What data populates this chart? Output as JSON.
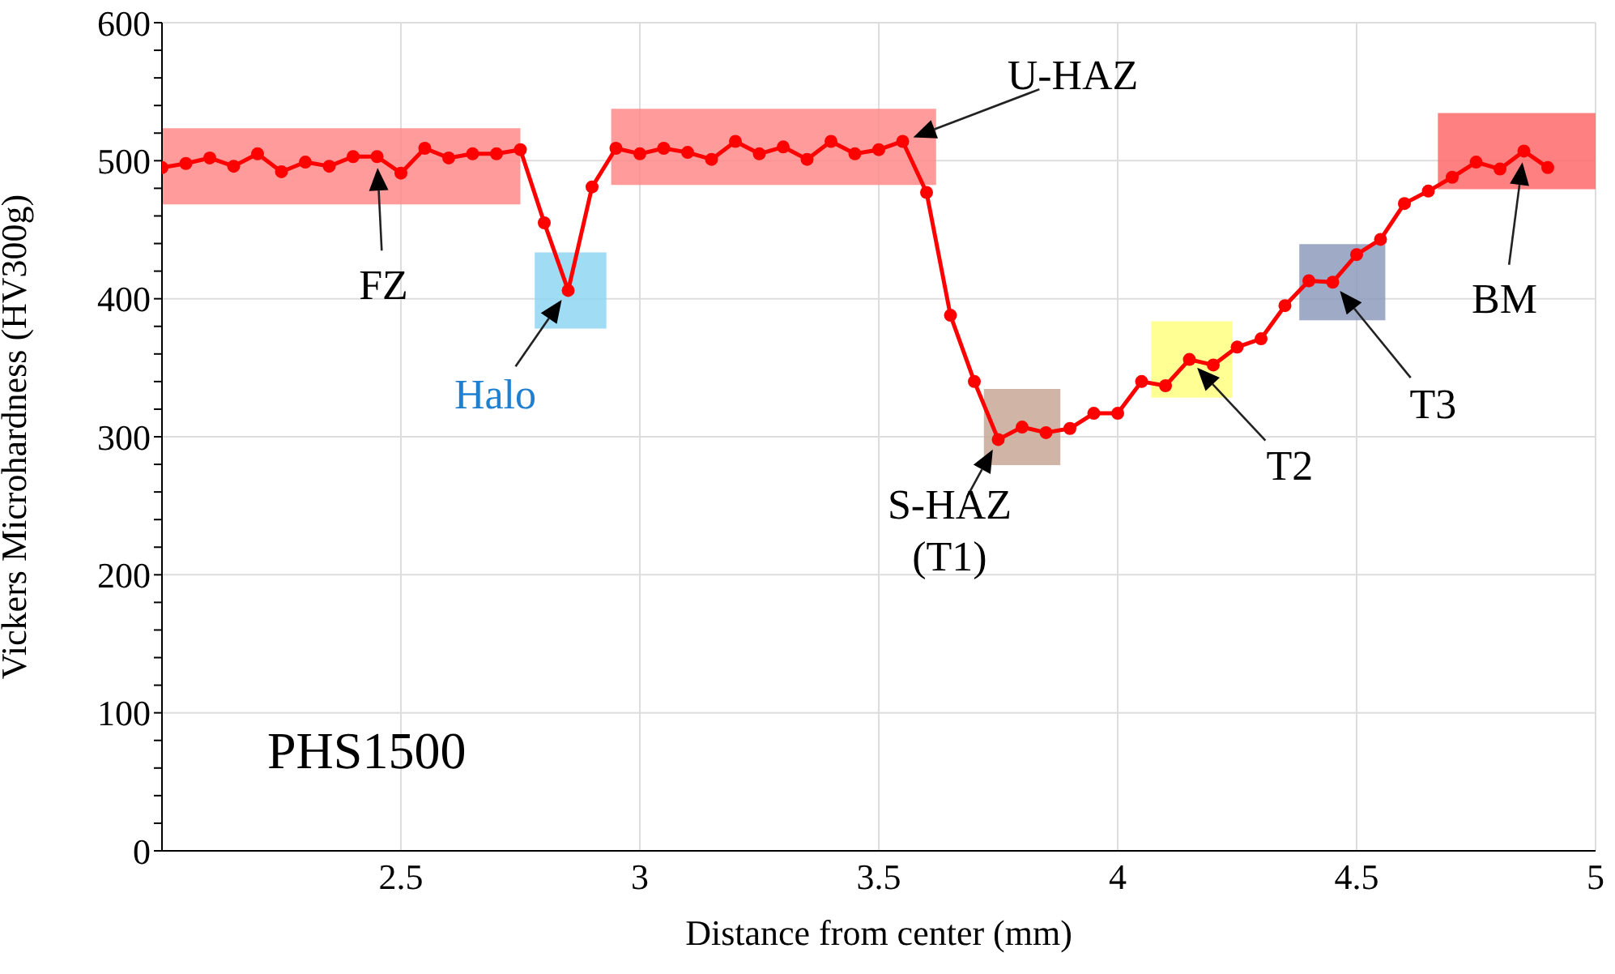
{
  "chart_data": {
    "type": "line",
    "xlabel": "Distance from center (mm)",
    "ylabel": "Vickers Microhardness (HV300g)",
    "x": [
      2.0,
      2.05,
      2.1,
      2.15,
      2.2,
      2.25,
      2.3,
      2.35,
      2.4,
      2.45,
      2.5,
      2.55,
      2.6,
      2.65,
      2.7,
      2.75,
      2.8,
      2.85,
      2.9,
      2.95,
      3.0,
      3.05,
      3.1,
      3.15,
      3.2,
      3.25,
      3.3,
      3.35,
      3.4,
      3.45,
      3.5,
      3.55,
      3.6,
      3.65,
      3.7,
      3.75,
      3.8,
      3.85,
      3.9,
      3.95,
      4.0,
      4.05,
      4.1,
      4.15,
      4.2,
      4.25,
      4.3,
      4.35,
      4.4,
      4.45,
      4.5,
      4.55,
      4.6,
      4.65,
      4.7,
      4.75,
      4.8,
      4.85,
      4.9
    ],
    "series": [
      {
        "color": "#ff0000",
        "values": [
          495,
          498,
          502,
          496,
          505,
          492,
          499,
          496,
          503,
          503,
          491,
          509,
          502,
          505,
          505,
          508,
          455,
          406,
          481,
          509,
          505,
          509,
          506,
          501,
          514,
          505,
          510,
          501,
          514,
          505,
          508,
          514,
          477,
          388,
          340,
          298,
          307,
          303,
          306,
          317,
          317,
          340,
          337,
          356,
          352,
          365,
          371,
          395,
          413,
          412,
          432,
          443,
          469,
          478,
          488,
          499,
          494,
          507,
          495
        ]
      }
    ],
    "xlim": [
      2,
      5
    ],
    "xticks": [
      2.5,
      3,
      3.5,
      4,
      4.5,
      5
    ],
    "ylim": [
      0,
      600
    ],
    "yticks": [
      0,
      {
        "value": 20,
        "label": null
      },
      {
        "value": 40,
        "label": null
      },
      {
        "value": 60,
        "label": null
      },
      {
        "value": 80,
        "label": null
      },
      100,
      {
        "value": 120,
        "label": null
      },
      {
        "value": 140,
        "label": null
      },
      {
        "value": 160,
        "label": null
      },
      {
        "value": 180,
        "label": null
      },
      200,
      {
        "value": 220,
        "label": null
      },
      {
        "value": 240,
        "label": null
      },
      {
        "value": 260,
        "label": null
      },
      {
        "value": 280,
        "label": null
      },
      300,
      {
        "value": 320,
        "label": null
      },
      {
        "value": 340,
        "label": null
      },
      {
        "value": 360,
        "label": null
      },
      {
        "value": 380,
        "label": null
      },
      400,
      {
        "value": 420,
        "label": null
      },
      {
        "value": 440,
        "label": null
      },
      {
        "value": 460,
        "label": null
      },
      {
        "value": 480,
        "label": null
      },
      500,
      {
        "value": 520,
        "label": null
      },
      {
        "value": 540,
        "label": null
      },
      {
        "value": 560,
        "label": null
      },
      {
        "value": 580,
        "label": null
      },
      600
    ],
    "grid": true,
    "marker": "circle",
    "line_style": "solid",
    "legend": false,
    "bands": [
      {
        "axis": "x",
        "from": 2.0,
        "to": 2.75,
        "color": "#ff8a8a"
      },
      {
        "axis": "x",
        "from": 2.78,
        "to": 2.93,
        "color": "#8fd6f2"
      },
      {
        "axis": "x",
        "from": 2.94,
        "to": 3.62,
        "color": "#ff8a8a"
      },
      {
        "axis": "x",
        "from": 3.72,
        "to": 3.88,
        "color": "#c8a898"
      },
      {
        "axis": "x",
        "from": 4.07,
        "to": 4.24,
        "color": "#ffff80"
      },
      {
        "axis": "x",
        "from": 4.38,
        "to": 4.56,
        "color": "#8e9cbc"
      },
      {
        "axis": "x",
        "from": 4.67,
        "to": 5.0,
        "color": "#ff6a6a"
      }
    ],
    "annotations": [
      {
        "text": "FZ",
        "x": 2.45,
        "y": 503
      },
      {
        "text": "Halo",
        "x": 2.85,
        "y": 406
      },
      {
        "text": "U-HAZ",
        "x": 3.55,
        "y": 514
      },
      {
        "text": "S-HAZ\n(T1)",
        "x": 3.75,
        "y": 298
      },
      {
        "text": "T2",
        "x": 4.15,
        "y": 356
      },
      {
        "text": "T3",
        "x": 4.45,
        "y": 412
      },
      {
        "text": "BM",
        "x": 4.85,
        "y": 507
      },
      "PHS1500"
    ]
  }
}
